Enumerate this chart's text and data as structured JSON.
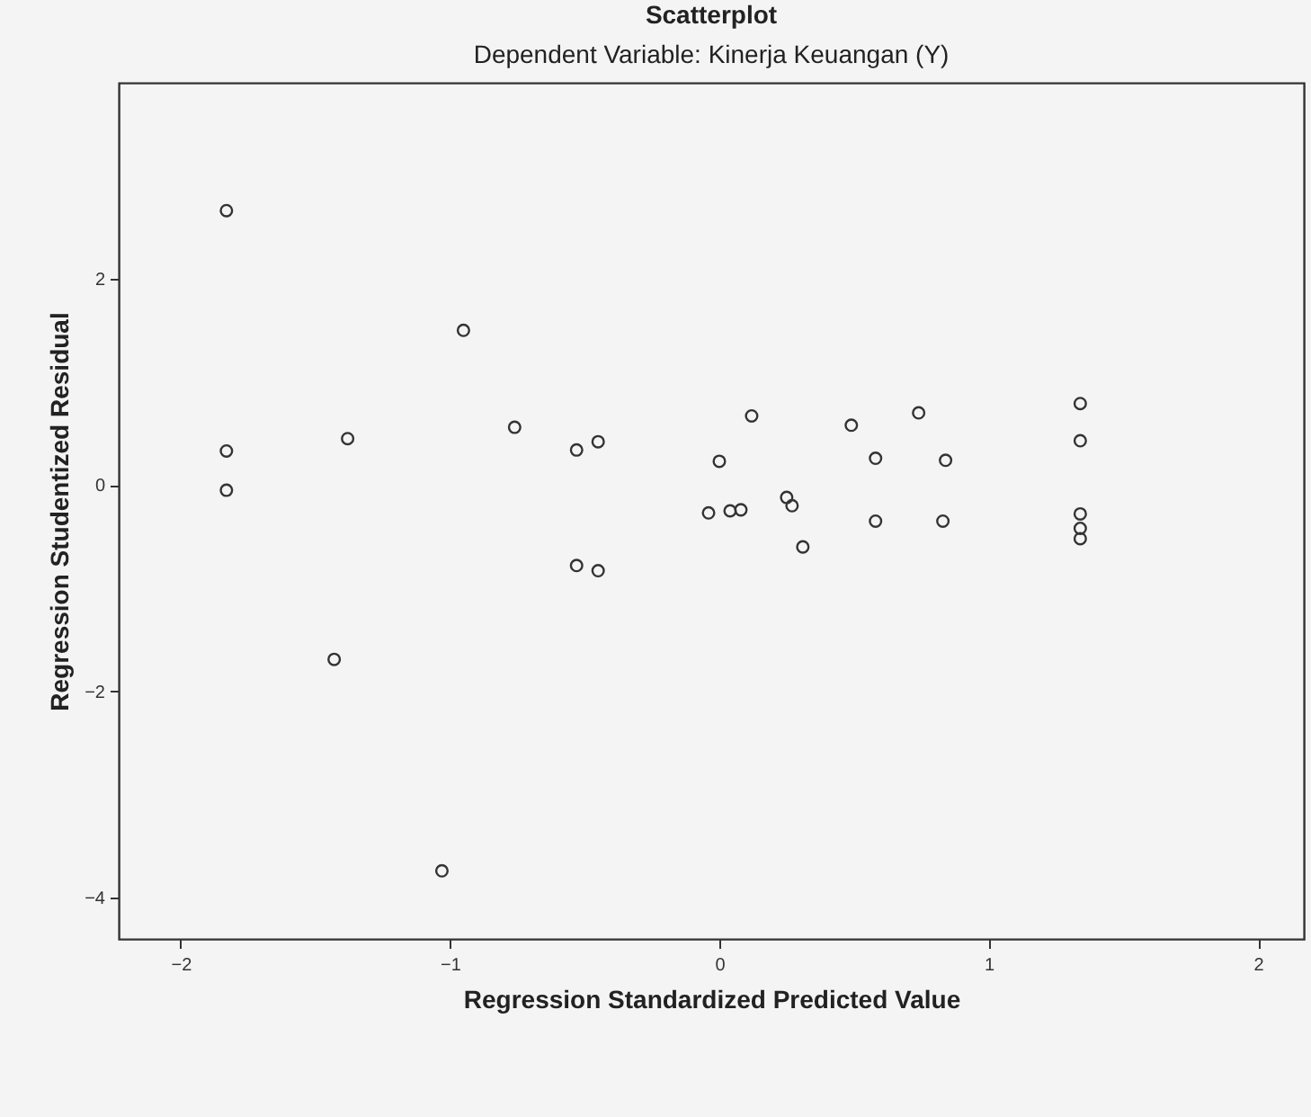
{
  "chart_data": {
    "type": "scatter",
    "title": "Scatterplot",
    "subtitle": "Dependent Variable: Kinerja Keuangan (Y)",
    "xlabel": "Regression Standardized Predicted Value",
    "ylabel": "Regression Studentized Residual",
    "x": [
      -1.83,
      -0.95,
      -1.83,
      -1.83,
      -1.38,
      -0.76,
      -0.53,
      -0.45,
      -0.53,
      -0.45,
      0.12,
      0.0,
      -0.04,
      0.04,
      0.08,
      0.25,
      0.27,
      0.31,
      0.49,
      0.58,
      0.58,
      0.74,
      0.84,
      0.83,
      1.34,
      1.34,
      1.34,
      1.34,
      1.34,
      -1.43,
      -1.03
    ],
    "series": [
      {
        "color": "#333333",
        "values": [
          2.66,
          1.5,
          0.33,
          -0.05,
          0.45,
          0.56,
          0.34,
          0.42,
          -0.78,
          -0.83,
          0.67,
          0.23,
          -0.27,
          -0.25,
          -0.24,
          -0.12,
          -0.2,
          -0.6,
          0.58,
          0.26,
          -0.35,
          0.7,
          0.24,
          -0.35,
          0.79,
          0.43,
          -0.28,
          -0.42,
          -0.52,
          -1.69,
          -3.74
        ]
      }
    ],
    "xlim": [
      -2.23,
      2.17
    ],
    "xticks": [
      -2,
      -1,
      0,
      1,
      2
    ],
    "ylim": [
      -4.4,
      3.9
    ],
    "yticks": [
      -4,
      -2,
      0,
      2
    ],
    "grid": false,
    "marker": "circle"
  }
}
